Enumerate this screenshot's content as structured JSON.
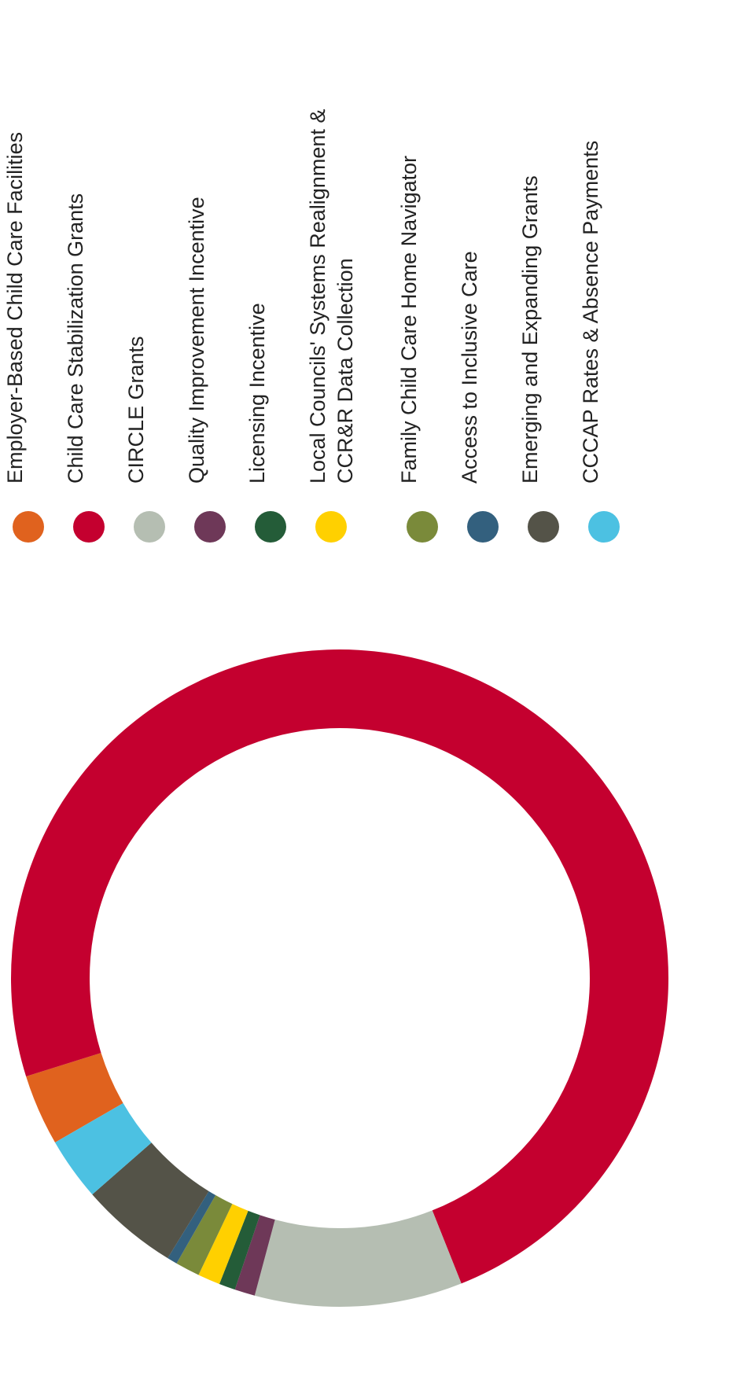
{
  "chart_data": {
    "type": "donut",
    "legend_position": "right",
    "series": [
      {
        "name": "Employer-Based Child Care Facilities",
        "value": 3.5,
        "color": "#e0621e"
      },
      {
        "name": "Child Care Stabilization Grants",
        "value": 73.8,
        "color": "#c4002f"
      },
      {
        "name": "CIRCLE Grants",
        "value": 10.2,
        "color": "#b5beb2"
      },
      {
        "name": "Quality Improvement Incentive",
        "value": 1.0,
        "color": "#6e3858"
      },
      {
        "name": "Licensing Incentive",
        "value": 0.8,
        "color": "#245c38"
      },
      {
        "name": "Local Councils' Systems Realignment & CCR&R Data Collection",
        "value": 1.1,
        "color": "#ffd000"
      },
      {
        "name": "Family Child Care Home Navigator",
        "value": 1.2,
        "color": "#7a8a3a"
      },
      {
        "name": "Access to Inclusive Care",
        "value": 0.5,
        "color": "#33607e"
      },
      {
        "name": "Emerging and Expanding Grants",
        "value": 4.8,
        "color": "#545348"
      },
      {
        "name": "CCCAP Rates & Absence Payments",
        "value": 3.1,
        "color": "#4cc1e2"
      }
    ]
  },
  "legend": {
    "label_lines": [
      [
        "Employer-Based Child Care Facilities"
      ],
      [
        "Child Care Stabilization Grants"
      ],
      [
        "CIRCLE Grants"
      ],
      [
        "Quality Improvement Incentive"
      ],
      [
        "Licensing Incentive"
      ],
      [
        "Local Councils' Systems Realignment &",
        "CCR&R Data Collection"
      ],
      [
        "Family Child Care Home Navigator"
      ],
      [
        "Access to Inclusive Care"
      ],
      [
        "Emerging and Expanding Grants"
      ],
      [
        "CCCAP Rates & Absence Payments"
      ]
    ]
  }
}
